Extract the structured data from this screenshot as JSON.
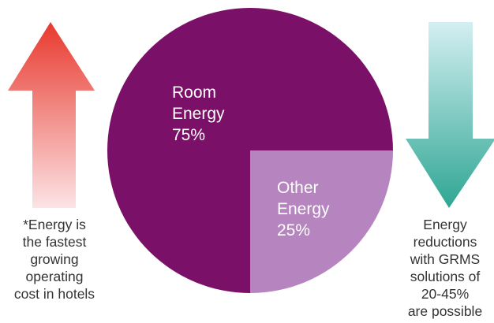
{
  "chart_data": {
    "type": "pie",
    "title": "",
    "slices": [
      {
        "label_lines": [
          "Room",
          "Energy",
          "75%"
        ],
        "value": 75,
        "color": "#7B1068"
      },
      {
        "label_lines": [
          "Other",
          "Energy",
          "25%"
        ],
        "value": 25,
        "color": "#B684BE"
      }
    ]
  },
  "left_arrow": {
    "direction": "up",
    "gradient_top": "#E8392E",
    "gradient_bottom": "#FCE3E5",
    "caption": "*Energy is\nthe fastest\ngrowing\noperating\ncost in hotels"
  },
  "right_arrow": {
    "direction": "down",
    "gradient_top": "#D4EFF2",
    "gradient_bottom": "#2FA693",
    "caption": "Energy\nreductions\nwith GRMS\nsolutions of\n20-45%\nare possible"
  }
}
